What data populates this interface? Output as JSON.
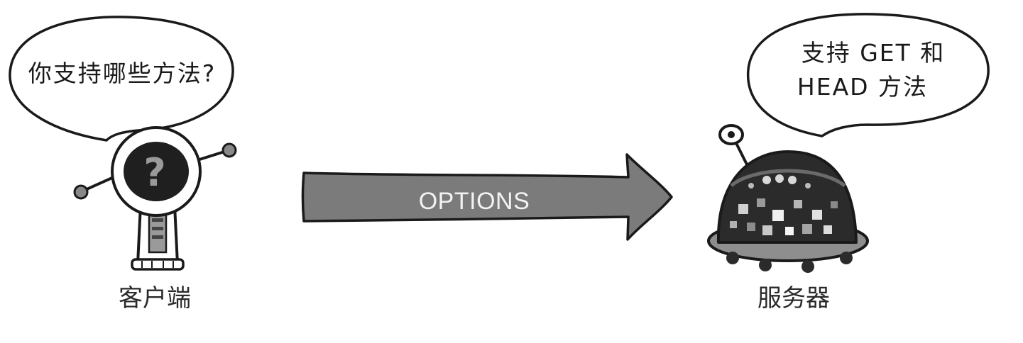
{
  "client": {
    "bubble_text": "你支持哪些方法?",
    "caption": "客户端",
    "face_icon": "question-mark"
  },
  "request": {
    "method_label": "OPTIONS"
  },
  "server": {
    "bubble_line1": "支持 GET 和",
    "bubble_line2": "HEAD 方法",
    "caption": "服务器"
  },
  "colors": {
    "arrow_fill": "#7b7b7b",
    "ink": "#1a1a1a",
    "robot_dark": "#2b2b2b"
  }
}
